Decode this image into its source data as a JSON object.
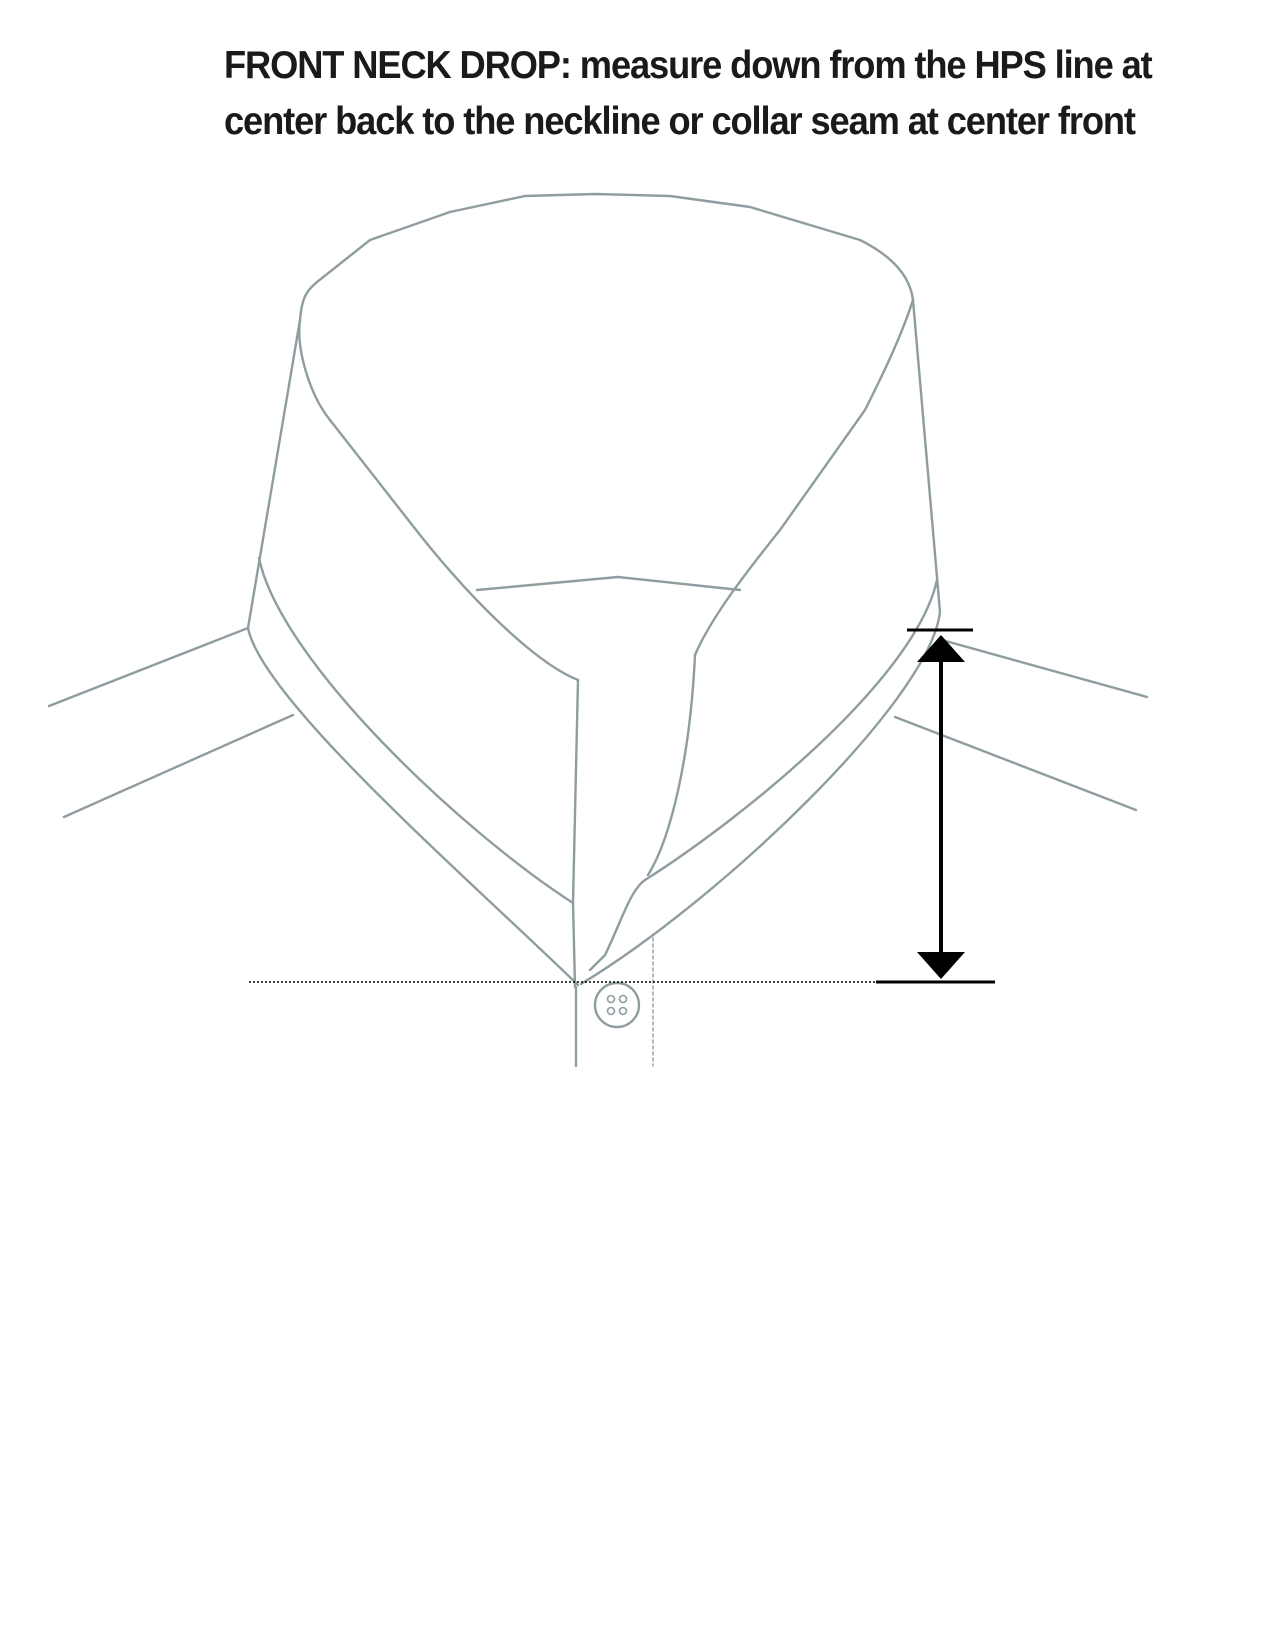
{
  "caption": {
    "line1": "FRONT NECK DROP:  measure down from the HPS line at",
    "line2": "center back to the neckline or collar seam at center front"
  },
  "colors": {
    "shirt_outline": "#8f9da0",
    "measure": "#000000",
    "text": "#1a1a1a"
  },
  "icons": [
    "four-hole-button",
    "double-headed-arrow"
  ]
}
